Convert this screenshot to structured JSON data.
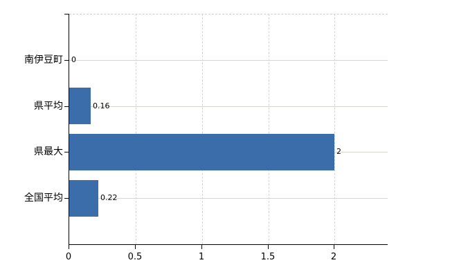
{
  "chart_data": {
    "type": "bar",
    "orientation": "horizontal",
    "title": "",
    "categories": [
      "南伊豆町",
      "県平均",
      "県最大",
      "全国平均"
    ],
    "values": [
      0,
      0.16,
      2,
      0.22
    ],
    "value_labels": [
      "0",
      "0.16",
      "2",
      "0.22"
    ],
    "x_ticks": [
      0,
      0.5,
      1,
      1.5,
      2
    ],
    "x_tick_labels": [
      "0",
      "0.5",
      "1",
      "1.5",
      "2"
    ],
    "xlim": [
      0,
      2.4
    ],
    "ylabel": "",
    "xlabel": "",
    "legend_position": "none",
    "grid": {
      "horizontal": "solid lines at category centers",
      "vertical": "dashed lines at x ticks",
      "top_frame": "dashed"
    },
    "colors": {
      "bar": "#3c6dab",
      "axis": "#000000",
      "gridline_horizontal": "#d3d8cf",
      "gridline_vertical": "#d6d2d6",
      "text": "#000000",
      "background": "#ffffff"
    }
  }
}
